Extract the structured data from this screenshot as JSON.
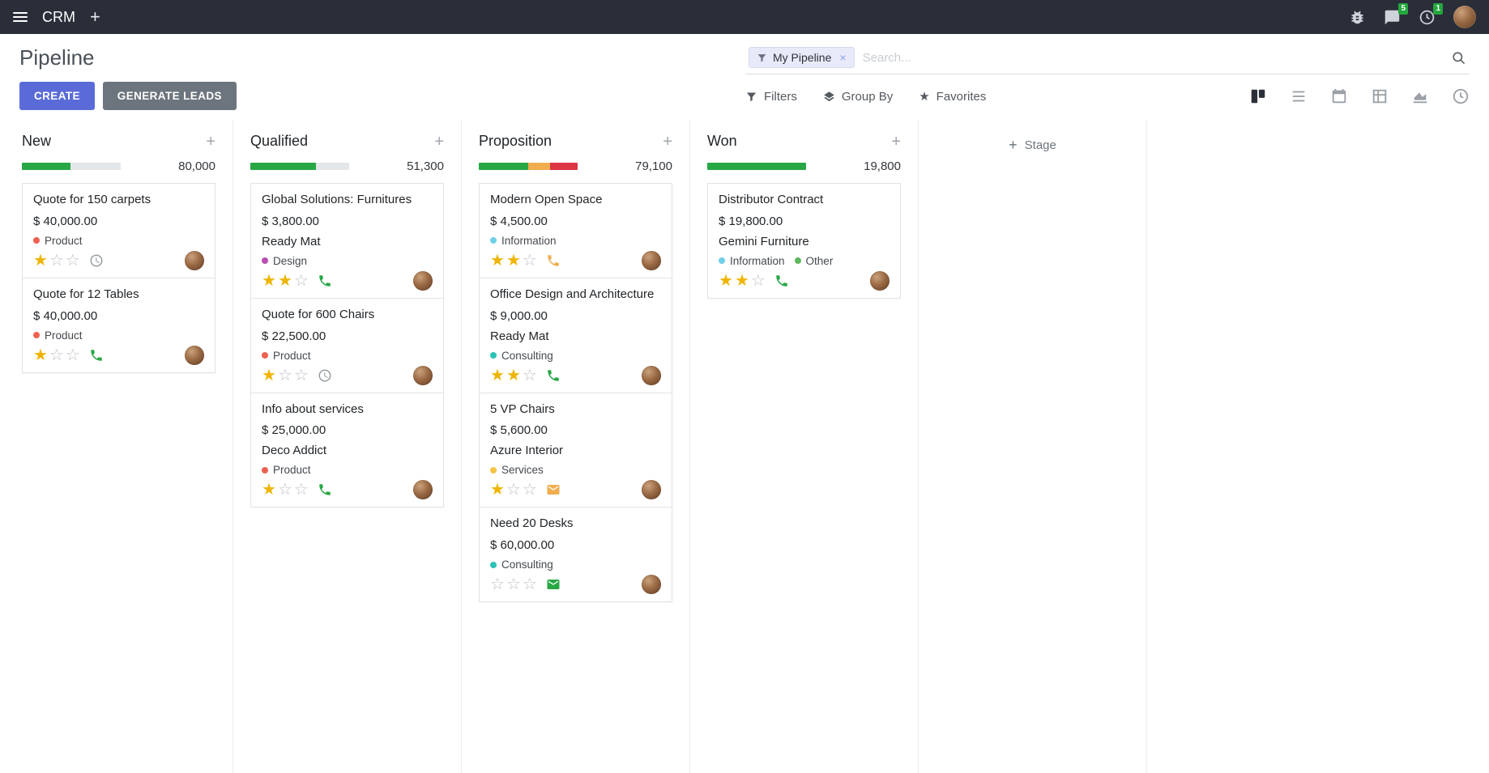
{
  "navbar": {
    "app_name": "CRM",
    "messages_badge": "5",
    "activities_badge": "1"
  },
  "control_panel": {
    "title": "Pipeline",
    "create_label": "CREATE",
    "generate_label": "GENERATE LEADS",
    "search_facet": "My Pipeline",
    "search_placeholder": "Search...",
    "filters_label": "Filters",
    "group_by_label": "Group By",
    "favorites_label": "Favorites"
  },
  "ui_colors": {
    "accent": "#5a6bd8",
    "secondary_button": "#6c757d",
    "progress_success": "#28a745",
    "progress_warning": "#f0ad4e",
    "progress_danger": "#dc3545"
  },
  "board": {
    "add_stage_label": "Stage",
    "columns": [
      {
        "name": "New",
        "total": "80,000",
        "progress": [
          {
            "color": "#28a745",
            "pct": 49
          },
          {
            "color": "#e4e7ea",
            "pct": 51
          }
        ],
        "cards": [
          {
            "title": "Quote for 150 carpets",
            "amount": "$ 40,000.00",
            "tags": [
              {
                "label": "Product",
                "color": "#f06050"
              }
            ],
            "stars": 1,
            "activity": {
              "icon": "clock",
              "color": "#979ca4"
            }
          },
          {
            "title": "Quote for 12 Tables",
            "amount": "$ 40,000.00",
            "tags": [
              {
                "label": "Product",
                "color": "#f06050"
              }
            ],
            "stars": 1,
            "activity": {
              "icon": "phone",
              "color": "#28a745"
            }
          }
        ]
      },
      {
        "name": "Qualified",
        "total": "51,300",
        "progress": [
          {
            "color": "#28a745",
            "pct": 66
          },
          {
            "color": "#e4e7ea",
            "pct": 34
          }
        ],
        "cards": [
          {
            "title": "Global Solutions: Furnitures",
            "amount": "$ 3,800.00",
            "partner": "Ready Mat",
            "tags": [
              {
                "label": "Design",
                "color": "#b94fb0"
              }
            ],
            "stars": 2,
            "activity": {
              "icon": "phone",
              "color": "#28a745"
            }
          },
          {
            "title": "Quote for 600 Chairs",
            "amount": "$ 22,500.00",
            "tags": [
              {
                "label": "Product",
                "color": "#f06050"
              }
            ],
            "stars": 1,
            "activity": {
              "icon": "clock",
              "color": "#979ca4"
            }
          },
          {
            "title": "Info about services",
            "amount": "$ 25,000.00",
            "partner": "Deco Addict",
            "tags": [
              {
                "label": "Product",
                "color": "#f06050"
              }
            ],
            "stars": 1,
            "activity": {
              "icon": "phone",
              "color": "#28a745"
            }
          }
        ]
      },
      {
        "name": "Proposition",
        "total": "79,100",
        "progress": [
          {
            "color": "#28a745",
            "pct": 50
          },
          {
            "color": "#f0ad4e",
            "pct": 22
          },
          {
            "color": "#dc3545",
            "pct": 28
          }
        ],
        "cards": [
          {
            "title": "Modern Open Space",
            "amount": "$ 4,500.00",
            "tags": [
              {
                "label": "Information",
                "color": "#6fcfe7"
              }
            ],
            "stars": 2,
            "activity": {
              "icon": "phone",
              "color": "#f0ad4e"
            }
          },
          {
            "title": "Office Design and Architecture",
            "amount": "$ 9,000.00",
            "partner": "Ready Mat",
            "tags": [
              {
                "label": "Consulting",
                "color": "#2ec1b5"
              }
            ],
            "stars": 2,
            "activity": {
              "icon": "phone",
              "color": "#28a745"
            }
          },
          {
            "title": "5 VP Chairs",
            "amount": "$ 5,600.00",
            "partner": "Azure Interior",
            "tags": [
              {
                "label": "Services",
                "color": "#f6c343"
              }
            ],
            "stars": 1,
            "activity": {
              "icon": "mail",
              "color": "#f0ad4e"
            }
          },
          {
            "title": "Need 20 Desks",
            "amount": "$ 60,000.00",
            "tags": [
              {
                "label": "Consulting",
                "color": "#2ec1b5"
              }
            ],
            "stars": 0,
            "activity": {
              "icon": "mail",
              "color": "#28a745"
            }
          }
        ]
      },
      {
        "name": "Won",
        "total": "19,800",
        "progress": [
          {
            "color": "#28a745",
            "pct": 100
          }
        ],
        "cards": [
          {
            "title": "Distributor Contract",
            "amount": "$ 19,800.00",
            "partner": "Gemini Furniture",
            "tags": [
              {
                "label": "Information",
                "color": "#6fcfe7"
              },
              {
                "label": "Other",
                "color": "#5fb75d"
              }
            ],
            "stars": 2,
            "activity": {
              "icon": "phone",
              "color": "#28a745"
            }
          }
        ]
      }
    ]
  }
}
